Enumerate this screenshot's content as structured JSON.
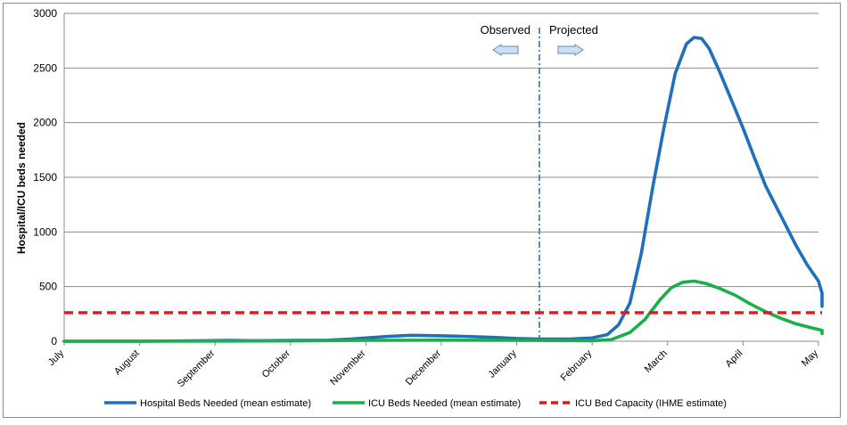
{
  "colors": {
    "hospital": "#1f6fbf",
    "icu": "#19b04a",
    "capacity": "#e0181a",
    "divider": "#3a6fb0",
    "arrow_fill": "#cfe0f5",
    "arrow_stroke": "#5b8ccc",
    "grid": "#8c8c8c"
  },
  "chart_data": {
    "type": "line",
    "title": "",
    "xlabel": "",
    "ylabel": "Hospital/ICU beds needed",
    "ylim": [
      0,
      3000
    ],
    "yticks": [
      0,
      500,
      1000,
      1500,
      2000,
      2500,
      3000
    ],
    "xlim": [
      0,
      10
    ],
    "x_ticks": [
      {
        "label": "July",
        "x": 0
      },
      {
        "label": "August",
        "x": 1
      },
      {
        "label": "September",
        "x": 2
      },
      {
        "label": "October",
        "x": 3
      },
      {
        "label": "November",
        "x": 4
      },
      {
        "label": "December",
        "x": 5
      },
      {
        "label": "January",
        "x": 6
      },
      {
        "label": "February",
        "x": 7
      },
      {
        "label": "March",
        "x": 8
      },
      {
        "label": "April",
        "x": 9
      },
      {
        "label": "May",
        "x": 10
      }
    ],
    "divider_x": 6.3,
    "annotations": {
      "observed": "Observed",
      "projected": "Projected"
    },
    "series": [
      {
        "name": "Hospital Beds Needed (mean estimate)",
        "key": "hospital",
        "style": "solid",
        "points": [
          [
            0,
            0
          ],
          [
            1,
            0
          ],
          [
            1.8,
            5
          ],
          [
            2.2,
            8
          ],
          [
            2.5,
            5
          ],
          [
            3,
            8
          ],
          [
            3.5,
            10
          ],
          [
            3.8,
            20
          ],
          [
            4,
            30
          ],
          [
            4.3,
            45
          ],
          [
            4.6,
            55
          ],
          [
            5,
            50
          ],
          [
            5.3,
            45
          ],
          [
            5.7,
            35
          ],
          [
            6,
            25
          ],
          [
            6.3,
            20
          ],
          [
            6.7,
            20
          ],
          [
            7,
            30
          ],
          [
            7.2,
            60
          ],
          [
            7.35,
            150
          ],
          [
            7.5,
            350
          ],
          [
            7.65,
            800
          ],
          [
            7.8,
            1400
          ],
          [
            7.95,
            1950
          ],
          [
            8.1,
            2450
          ],
          [
            8.25,
            2720
          ],
          [
            8.35,
            2780
          ],
          [
            8.45,
            2770
          ],
          [
            8.55,
            2680
          ],
          [
            8.7,
            2450
          ],
          [
            8.85,
            2200
          ],
          [
            9,
            1950
          ],
          [
            9.15,
            1680
          ],
          [
            9.3,
            1420
          ],
          [
            9.5,
            1150
          ],
          [
            9.7,
            880
          ],
          [
            9.85,
            700
          ],
          [
            10,
            550
          ],
          [
            10.15,
            440
          ],
          [
            10.3,
            370
          ],
          [
            10.45,
            320
          ]
        ]
      },
      {
        "name": "ICU Beds Needed (mean estimate)",
        "key": "icu",
        "style": "solid",
        "points": [
          [
            0,
            0
          ],
          [
            2,
            2
          ],
          [
            3,
            3
          ],
          [
            4,
            8
          ],
          [
            5,
            10
          ],
          [
            6,
            8
          ],
          [
            7,
            5
          ],
          [
            7.25,
            15
          ],
          [
            7.5,
            80
          ],
          [
            7.7,
            200
          ],
          [
            7.9,
            380
          ],
          [
            8.05,
            490
          ],
          [
            8.2,
            540
          ],
          [
            8.35,
            550
          ],
          [
            8.5,
            530
          ],
          [
            8.7,
            480
          ],
          [
            8.9,
            420
          ],
          [
            9.1,
            340
          ],
          [
            9.3,
            270
          ],
          [
            9.5,
            210
          ],
          [
            9.7,
            160
          ],
          [
            9.9,
            125
          ],
          [
            10.1,
            100
          ],
          [
            10.3,
            80
          ],
          [
            10.45,
            70
          ]
        ]
      },
      {
        "name": "ICU Bed Capacity (IHME estimate)",
        "key": "capacity",
        "style": "dashed",
        "points": [
          [
            0,
            262
          ],
          [
            10.45,
            262
          ]
        ]
      }
    ]
  }
}
